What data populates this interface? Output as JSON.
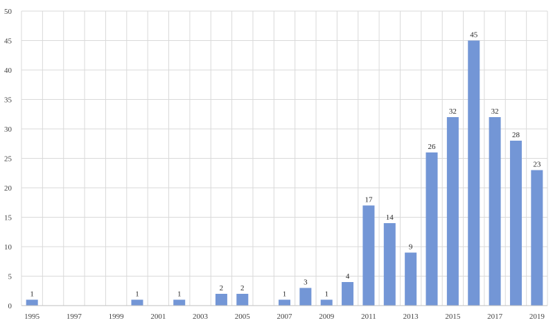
{
  "chart_data": {
    "type": "bar",
    "title": "",
    "xlabel": "",
    "ylabel": "",
    "ylim": [
      0,
      50
    ],
    "yticks": [
      "0",
      "5",
      "10",
      "15",
      "20",
      "25",
      "30",
      "35",
      "40",
      "45",
      "50"
    ],
    "categories": [
      "1995",
      "1996",
      "1997",
      "1998",
      "1999",
      "2000",
      "2001",
      "2002",
      "2003",
      "2004",
      "2005",
      "2006",
      "2007",
      "2008",
      "2009",
      "2010",
      "2011",
      "2012",
      "2013",
      "2014",
      "2015",
      "2016",
      "2017",
      "2018",
      "2019"
    ],
    "xtick_labels": [
      "1995",
      "1997",
      "1999",
      "2001",
      "2003",
      "2005",
      "2007",
      "2009",
      "2011",
      "2013",
      "2015",
      "2017",
      "2019"
    ],
    "values": [
      1,
      0,
      0,
      0,
      0,
      1,
      0,
      1,
      0,
      2,
      2,
      0,
      1,
      3,
      1,
      4,
      17,
      14,
      9,
      26,
      32,
      45,
      32,
      28,
      23
    ],
    "data_labels": [
      "1",
      "",
      "",
      "",
      "",
      "1",
      "",
      "1",
      "",
      "2",
      "2",
      "",
      "1",
      "3",
      "1",
      "4",
      "17",
      "14",
      "9",
      "26",
      "32",
      "45",
      "32",
      "28",
      "23"
    ],
    "grid": "vertical and horizontal",
    "legend": "none",
    "bar_color": "#7396d6"
  }
}
